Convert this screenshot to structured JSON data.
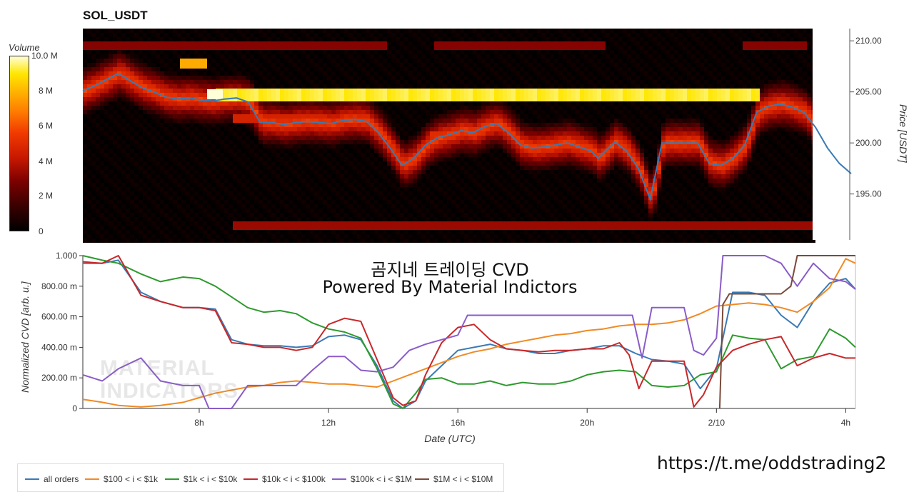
{
  "title": "SOL_USDT",
  "colorbar": {
    "title": "Volume",
    "ticks": [
      "10.0 M",
      "8 M",
      "6 M",
      "4 M",
      "2 M",
      "0"
    ]
  },
  "overlay": {
    "line1": "곰지네 트레이딩 CVD",
    "line2": "Powered By Material Indictors"
  },
  "watermark": {
    "line1": "MATERIAL",
    "line2": "INDICATORS"
  },
  "url": "https://t.me/oddstrading2",
  "chart_data": [
    {
      "type": "heatmap",
      "title": "SOL_USDT",
      "ylabel": "Price [USDT]",
      "ylim": [
        190.5,
        211.2
      ],
      "yticks": [
        "195.00",
        "200.00",
        "205.00",
        "210.00"
      ],
      "ytick_values": [
        195,
        200,
        205,
        210
      ],
      "colorbar_range": [
        0,
        10
      ],
      "colorbar_label": "Volume",
      "price_series": {
        "name": "price",
        "color": "#3a7ab4",
        "x": [
          0,
          0.5,
          1,
          1.5,
          2,
          2.5,
          3,
          3.5,
          4,
          4.5,
          5,
          5.5,
          6,
          6.5,
          7,
          7.5,
          8,
          8.5,
          9,
          9.5,
          10,
          10.5,
          11,
          11.5,
          12,
          12.5,
          13,
          13.5,
          14,
          14.5,
          15,
          15.5,
          16,
          16.5,
          17,
          17.5,
          18,
          18.5,
          19,
          19.5,
          20,
          20.5,
          21,
          21.5,
          21.8,
          22,
          22.5,
          23,
          23.5,
          24,
          24.5,
          25,
          25.5,
          26,
          26.5,
          27,
          27.5,
          28,
          28.5,
          29,
          29.5,
          30,
          30.5,
          31,
          31.5,
          32,
          32.5
        ],
        "y": [
          205.1,
          205.6,
          206.2,
          206.8,
          206.1,
          205.4,
          205.0,
          204.5,
          204.3,
          204.4,
          204.2,
          204.1,
          204.3,
          204.4,
          204.0,
          202.0,
          202.0,
          201.8,
          202.0,
          202.1,
          202.0,
          201.9,
          202.2,
          202.3,
          202.1,
          201.0,
          199.5,
          197.8,
          198.5,
          199.8,
          200.5,
          200.8,
          201.2,
          201.0,
          201.6,
          201.9,
          201.0,
          199.8,
          199.5,
          199.6,
          199.8,
          200.0,
          199.6,
          199.2,
          198.5,
          199.0,
          200.1,
          199.2,
          197.5,
          194.5,
          200.0,
          200.0,
          200.0,
          200.0,
          198.0,
          197.8,
          198.5,
          199.8,
          203.0,
          203.6,
          203.8,
          203.5,
          203.0,
          201.5,
          199.5,
          198.0,
          197.0
        ]
      }
    },
    {
      "type": "line",
      "xlabel": "Date (UTC)",
      "ylabel": "Normalized CVD [arb. u.]",
      "ylim": [
        0,
        1
      ],
      "xlim": [
        4.4,
        28.3
      ],
      "yticks": [
        "0",
        "200.00 m",
        "400.00 m",
        "600.00 m",
        "800.00 m",
        "1.000"
      ],
      "ytick_values": [
        0,
        0.2,
        0.4,
        0.6,
        0.8,
        1.0
      ],
      "xticks": [
        "8h",
        "12h",
        "16h",
        "20h",
        "2/10",
        "4h"
      ],
      "xtick_values": [
        8,
        12,
        16,
        20,
        24,
        28
      ],
      "series": [
        {
          "name": "all orders",
          "color": "#3a7ab4",
          "x": [
            4.4,
            5.0,
            5.5,
            6.2,
            6.8,
            7.5,
            8.0,
            8.5,
            9.0,
            9.5,
            10.0,
            10.5,
            11.0,
            11.5,
            12.0,
            12.5,
            13.0,
            13.5,
            14.0,
            14.3,
            14.7,
            15.0,
            15.5,
            16.0,
            16.5,
            17.0,
            17.5,
            18.0,
            18.5,
            19.0,
            19.5,
            20.0,
            20.5,
            21.0,
            21.5,
            22.0,
            22.5,
            23.0,
            23.5,
            24.0,
            24.5,
            25.0,
            25.5,
            26.0,
            26.5,
            27.0,
            27.5,
            28.0,
            28.3
          ],
          "y": [
            0.95,
            0.95,
            0.97,
            0.76,
            0.7,
            0.66,
            0.66,
            0.65,
            0.45,
            0.42,
            0.41,
            0.41,
            0.4,
            0.41,
            0.47,
            0.48,
            0.45,
            0.28,
            0.05,
            0.0,
            0.05,
            0.18,
            0.28,
            0.38,
            0.4,
            0.42,
            0.39,
            0.38,
            0.36,
            0.36,
            0.38,
            0.39,
            0.41,
            0.41,
            0.36,
            0.32,
            0.31,
            0.29,
            0.13,
            0.26,
            0.76,
            0.76,
            0.74,
            0.61,
            0.53,
            0.7,
            0.82,
            0.85,
            0.78
          ]
        },
        {
          "name": "$100 < i < $1k",
          "color": "#f08a24",
          "x": [
            4.4,
            5.0,
            5.5,
            6.2,
            6.8,
            7.5,
            8.0,
            8.5,
            9.0,
            9.5,
            10.0,
            10.5,
            11.0,
            11.5,
            12.0,
            12.5,
            13.0,
            13.5,
            14.0,
            14.5,
            15.0,
            15.5,
            16.0,
            16.5,
            17.0,
            17.5,
            18.0,
            18.5,
            19.0,
            19.5,
            20.0,
            20.5,
            21.0,
            21.5,
            22.0,
            22.5,
            23.0,
            23.5,
            24.0,
            24.5,
            25.0,
            25.5,
            26.0,
            26.5,
            27.0,
            27.5,
            28.0,
            28.3
          ],
          "y": [
            0.06,
            0.04,
            0.02,
            0.01,
            0.02,
            0.04,
            0.07,
            0.1,
            0.12,
            0.14,
            0.15,
            0.17,
            0.18,
            0.17,
            0.16,
            0.16,
            0.15,
            0.14,
            0.18,
            0.22,
            0.26,
            0.3,
            0.34,
            0.37,
            0.39,
            0.42,
            0.44,
            0.46,
            0.48,
            0.49,
            0.51,
            0.52,
            0.54,
            0.55,
            0.55,
            0.56,
            0.58,
            0.62,
            0.67,
            0.68,
            0.69,
            0.68,
            0.66,
            0.63,
            0.7,
            0.79,
            0.98,
            0.95
          ]
        },
        {
          "name": "$1k < i < $10k",
          "color": "#2e9a2e",
          "x": [
            4.4,
            5.0,
            5.5,
            6.2,
            6.8,
            7.5,
            8.0,
            8.5,
            9.0,
            9.5,
            10.0,
            10.5,
            11.0,
            11.5,
            12.0,
            12.5,
            13.0,
            13.5,
            14.0,
            14.3,
            14.7,
            15.0,
            15.5,
            16.0,
            16.5,
            17.0,
            17.5,
            18.0,
            18.5,
            19.0,
            19.5,
            20.0,
            20.5,
            21.0,
            21.5,
            22.0,
            22.5,
            23.0,
            23.5,
            24.0,
            24.5,
            25.0,
            25.5,
            26.0,
            26.5,
            27.0,
            27.5,
            28.0,
            28.3
          ],
          "y": [
            1.0,
            0.97,
            0.95,
            0.88,
            0.83,
            0.86,
            0.85,
            0.8,
            0.73,
            0.66,
            0.63,
            0.64,
            0.62,
            0.56,
            0.52,
            0.5,
            0.46,
            0.26,
            0.03,
            0.0,
            0.1,
            0.19,
            0.2,
            0.16,
            0.16,
            0.18,
            0.15,
            0.17,
            0.16,
            0.16,
            0.18,
            0.22,
            0.24,
            0.25,
            0.24,
            0.15,
            0.14,
            0.15,
            0.22,
            0.24,
            0.48,
            0.46,
            0.45,
            0.26,
            0.32,
            0.34,
            0.52,
            0.46,
            0.4
          ]
        },
        {
          "name": "$10k < i < $100k",
          "color": "#c8282a",
          "x": [
            4.4,
            5.0,
            5.5,
            6.2,
            6.8,
            7.5,
            8.0,
            8.5,
            9.0,
            9.5,
            10.0,
            10.5,
            11.0,
            11.5,
            12.0,
            12.5,
            13.0,
            13.5,
            14.0,
            14.3,
            14.7,
            15.0,
            15.5,
            16.0,
            16.5,
            17.0,
            17.5,
            18.0,
            18.5,
            19.0,
            19.5,
            20.0,
            20.5,
            21.0,
            21.3,
            21.6,
            22.0,
            22.5,
            23.0,
            23.3,
            23.6,
            24.0,
            24.5,
            25.0,
            25.5,
            26.0,
            26.5,
            27.0,
            27.5,
            28.0,
            28.3
          ],
          "y": [
            0.96,
            0.95,
            1.0,
            0.74,
            0.7,
            0.66,
            0.66,
            0.64,
            0.43,
            0.42,
            0.4,
            0.4,
            0.38,
            0.4,
            0.55,
            0.59,
            0.57,
            0.32,
            0.07,
            0.02,
            0.05,
            0.22,
            0.43,
            0.53,
            0.55,
            0.45,
            0.39,
            0.38,
            0.37,
            0.38,
            0.38,
            0.39,
            0.39,
            0.43,
            0.35,
            0.13,
            0.31,
            0.31,
            0.31,
            0.01,
            0.09,
            0.27,
            0.38,
            0.42,
            0.45,
            0.47,
            0.28,
            0.33,
            0.36,
            0.33,
            0.33
          ]
        },
        {
          "name": "$100k < i < $1M",
          "color": "#8a5cc8",
          "x": [
            4.4,
            5.0,
            5.5,
            6.2,
            6.8,
            7.5,
            8.0,
            8.3,
            9.0,
            9.5,
            10.0,
            10.5,
            11.0,
            11.5,
            12.0,
            12.5,
            13.0,
            13.5,
            14.0,
            14.5,
            15.0,
            15.5,
            16.0,
            16.3,
            17.0,
            18.0,
            19.0,
            20.0,
            21.0,
            21.4,
            21.7,
            22.0,
            22.5,
            23.0,
            23.3,
            23.6,
            24.0,
            24.2,
            24.5,
            25.0,
            25.5,
            26.0,
            26.5,
            27.0,
            27.5,
            28.0,
            28.3
          ],
          "y": [
            0.22,
            0.18,
            0.26,
            0.33,
            0.18,
            0.15,
            0.15,
            0.0,
            0.0,
            0.15,
            0.15,
            0.15,
            0.15,
            0.25,
            0.34,
            0.34,
            0.25,
            0.24,
            0.27,
            0.38,
            0.42,
            0.45,
            0.48,
            0.61,
            0.61,
            0.61,
            0.61,
            0.61,
            0.61,
            0.61,
            0.33,
            0.66,
            0.66,
            0.66,
            0.38,
            0.35,
            0.46,
            1.0,
            1.0,
            1.0,
            1.0,
            0.95,
            0.8,
            0.95,
            0.85,
            0.83,
            0.78
          ]
        },
        {
          "name": "$1M < i < $10M",
          "color": "#7a4a3a",
          "x": [
            24.1,
            24.2,
            24.4,
            25.0,
            25.5,
            26.0,
            26.3,
            26.5,
            27.0,
            27.5,
            28.0,
            28.3
          ],
          "y": [
            0.0,
            0.68,
            0.75,
            0.75,
            0.75,
            0.75,
            0.8,
            1.0,
            1.0,
            1.0,
            1.0,
            1.0
          ]
        }
      ]
    }
  ],
  "colors": {
    "heat_low": "#000000",
    "heat_mid": "#c81800",
    "heat_high": "#ffe600",
    "heat_max": "#ffffd8"
  }
}
